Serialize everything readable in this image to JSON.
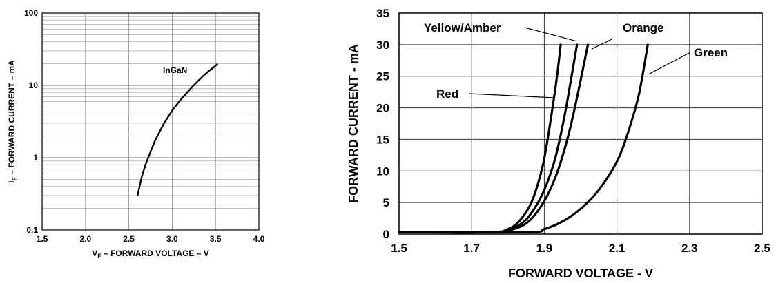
{
  "chart_data": [
    {
      "type": "line",
      "y_scale": "log",
      "xlabel_main": "V",
      "xlabel_sub": "F",
      "xlabel_rest": " – FORWARD VOLTAGE – V",
      "ylabel_main": "I",
      "ylabel_sub": "F",
      "ylabel_rest": " – FORWARD CURRENT – mA",
      "xlim": [
        1.5,
        4.0
      ],
      "ylim": [
        0.1,
        100
      ],
      "x_ticks": [
        {
          "value": 1.5,
          "label": "1.5"
        },
        {
          "value": 2.0,
          "label": "2.0"
        },
        {
          "value": 2.5,
          "label": "2.5"
        },
        {
          "value": 3.0,
          "label": "3.0"
        },
        {
          "value": 3.5,
          "label": "3.5"
        },
        {
          "value": 4.0,
          "label": "4.0"
        }
      ],
      "y_ticks": [
        {
          "value": 0.1,
          "label": "0.1"
        },
        {
          "value": 1,
          "label": "1"
        },
        {
          "value": 10,
          "label": "10"
        },
        {
          "value": 100,
          "label": "100"
        }
      ],
      "grid": true,
      "series": [
        {
          "name": "InGaN",
          "x": [
            2.6,
            2.65,
            2.7,
            2.8,
            2.9,
            3.0,
            3.1,
            3.2,
            3.3,
            3.4,
            3.52
          ],
          "y": [
            0.3,
            0.55,
            0.85,
            1.7,
            2.9,
            4.5,
            6.4,
            8.7,
            11.6,
            15.0,
            19.5
          ]
        }
      ]
    },
    {
      "type": "line",
      "xlabel": "FORWARD VOLTAGE - V",
      "ylabel": "FORWARD CURRENT - mA",
      "xlim": [
        1.5,
        2.5
      ],
      "ylim": [
        0,
        35
      ],
      "x_ticks": [
        {
          "value": 1.5,
          "label": "1.5"
        },
        {
          "value": 1.7,
          "label": "1.7"
        },
        {
          "value": 1.9,
          "label": "1.9"
        },
        {
          "value": 2.1,
          "label": "2.1"
        },
        {
          "value": 2.3,
          "label": "2.3"
        },
        {
          "value": 2.5,
          "label": "2.5"
        }
      ],
      "y_ticks": [
        {
          "value": 0,
          "label": "0"
        },
        {
          "value": 5,
          "label": "5"
        },
        {
          "value": 10,
          "label": "10"
        },
        {
          "value": 15,
          "label": "15"
        },
        {
          "value": 20,
          "label": "20"
        },
        {
          "value": 25,
          "label": "25"
        },
        {
          "value": 30,
          "label": "30"
        },
        {
          "value": 35,
          "label": "35"
        }
      ],
      "grid": true,
      "series": [
        {
          "name": "Red",
          "x": [
            1.5,
            1.75,
            1.8,
            1.83,
            1.86,
            1.88,
            1.9,
            1.92,
            1.935,
            1.945
          ],
          "y": [
            0.3,
            0.3,
            0.8,
            2.0,
            4.5,
            7.5,
            12.0,
            19.0,
            25.0,
            30.0
          ]
        },
        {
          "name": "Yellow/Amber",
          "x": [
            1.5,
            1.75,
            1.8,
            1.84,
            1.87,
            1.9,
            1.93,
            1.955,
            1.975,
            1.99
          ],
          "y": [
            0.3,
            0.3,
            0.7,
            1.8,
            3.8,
            7.0,
            12.0,
            18.5,
            25.0,
            30.0
          ]
        },
        {
          "name": "Orange",
          "x": [
            1.5,
            1.76,
            1.81,
            1.85,
            1.88,
            1.91,
            1.94,
            1.97,
            1.995,
            2.02
          ],
          "y": [
            0.3,
            0.3,
            0.7,
            1.7,
            3.5,
            6.3,
            10.5,
            16.5,
            23.0,
            30.0
          ]
        },
        {
          "name": "Green",
          "x": [
            1.5,
            1.85,
            1.9,
            1.95,
            2.0,
            2.05,
            2.1,
            2.13,
            2.16,
            2.185
          ],
          "y": [
            0.3,
            0.3,
            0.8,
            2.0,
            4.0,
            7.0,
            11.5,
            16.0,
            22.0,
            30.0
          ]
        }
      ]
    }
  ]
}
